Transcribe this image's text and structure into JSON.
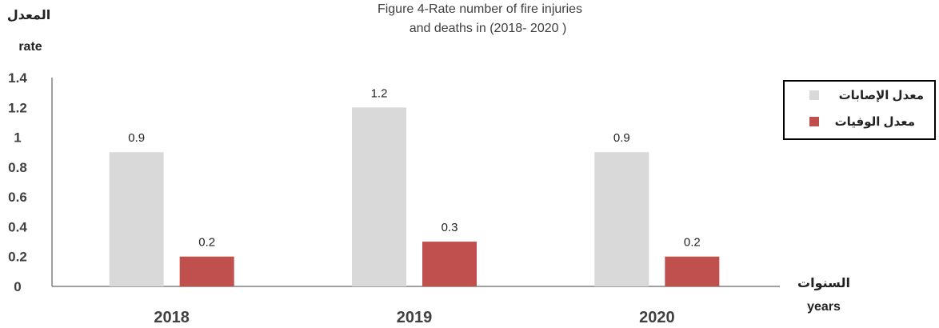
{
  "chart_data": {
    "type": "bar",
    "title_line1": "Figure 4-Rate number of fire injuries",
    "title_line2": "and deaths in  (2018- 2020 )",
    "ylabel_ar": "المعدل",
    "ylabel_en": "rate",
    "xlabel_ar": "السنوات",
    "xlabel_en": "years",
    "categories": [
      "2018",
      "2019",
      "2020"
    ],
    "yticks": [
      "0",
      "0.2",
      "0.4",
      "0.6",
      "0.8",
      "1",
      "1.2",
      "1.4"
    ],
    "ylim": [
      0,
      1.4
    ],
    "grid": false,
    "legend_position": "right",
    "series": [
      {
        "name": "معدل الإصابات",
        "color": "#d9d9d9",
        "values": [
          0.9,
          1.2,
          0.9
        ],
        "labels": [
          "0.9",
          "1.2",
          "0.9"
        ]
      },
      {
        "name": "معدل الوفيات",
        "color": "#c0504d",
        "values": [
          0.2,
          0.3,
          0.2
        ],
        "labels": [
          "0.2",
          "0.3",
          "0.2"
        ]
      }
    ]
  }
}
